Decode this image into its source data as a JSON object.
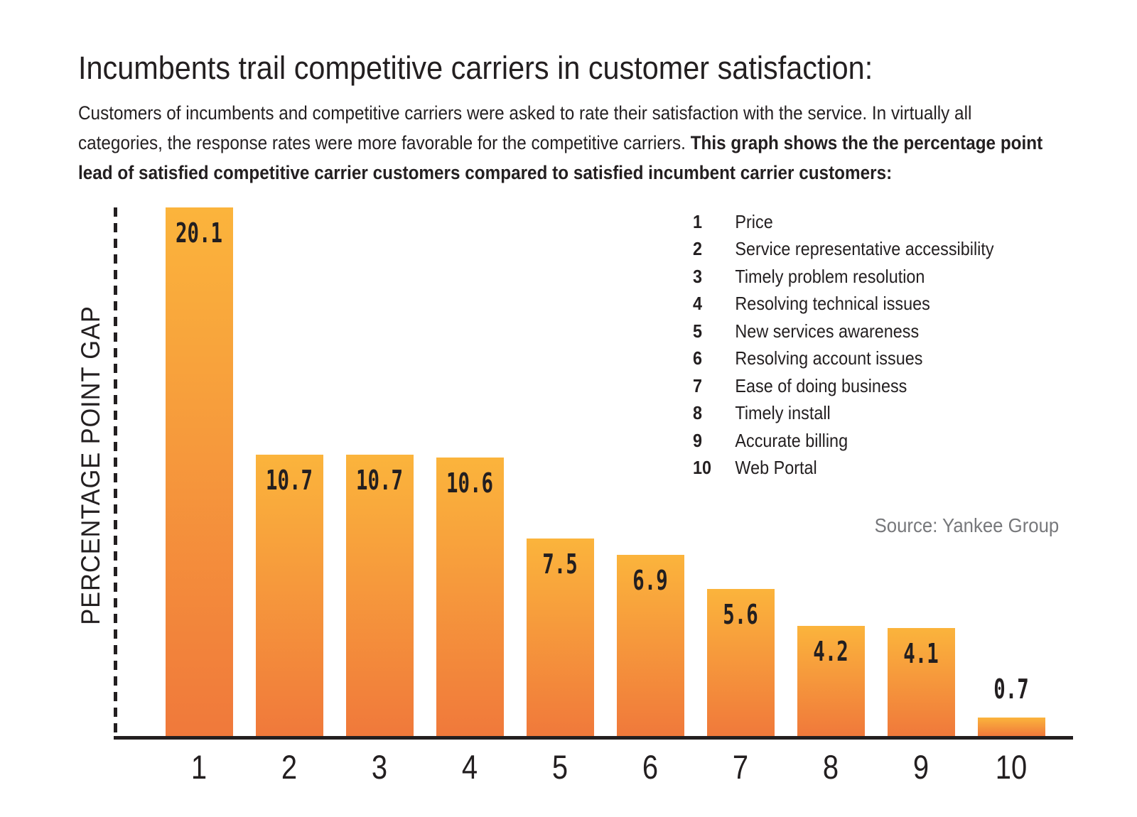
{
  "header": {
    "title": "Incumbents trail competitive carriers in customer satisfaction:",
    "description_regular": "Customers of incumbents and competitive carriers were asked to rate their satisfaction with the service. In virtually all categories, the response rates were more favorable for the competitive carriers. ",
    "description_bold": "This graph shows the the percentage point lead of satisfied competitive carrier customers compared to satisfied incumbent carrier customers:"
  },
  "chart": {
    "y_axis_label": "PERCENTAGE POINT GAP",
    "source": "Source: Yankee Group"
  },
  "legend": {
    "items": [
      {
        "num": "1",
        "label": "Price"
      },
      {
        "num": "2",
        "label": "Service representative accessibility"
      },
      {
        "num": "3",
        "label": "Timely problem resolution"
      },
      {
        "num": "4",
        "label": "Resolving technical issues"
      },
      {
        "num": "5",
        "label": "New services awareness"
      },
      {
        "num": "6",
        "label": "Resolving account issues"
      },
      {
        "num": "7",
        "label": "Ease of doing business"
      },
      {
        "num": "8",
        "label": "Timely install"
      },
      {
        "num": "9",
        "label": "Accurate billing"
      },
      {
        "num": "10",
        "label": "Web Portal"
      }
    ]
  },
  "colors": {
    "text": "#231F20",
    "axis": "#231F20",
    "source_gray": "#77787B",
    "bar_gradient_top": "#FBB43C",
    "bar_gradient_bottom": "#F0793B"
  },
  "chart_data": {
    "type": "bar",
    "categories": [
      "1",
      "2",
      "3",
      "4",
      "5",
      "6",
      "7",
      "8",
      "9",
      "10"
    ],
    "values": [
      20.1,
      10.7,
      10.7,
      10.6,
      7.5,
      6.9,
      5.6,
      4.2,
      4.1,
      0.7
    ],
    "value_labels": [
      "20.1",
      "10.7",
      "10.7",
      "10.6",
      "7.5",
      "6.9",
      "5.6",
      "4.2",
      "4.1",
      "0.7"
    ],
    "title": "Incumbents trail competitive carriers in customer satisfaction:",
    "xlabel": "",
    "ylabel": "PERCENTAGE POINT GAP",
    "ylim": [
      0,
      21
    ],
    "grid": false,
    "legend_position": "upper right",
    "category_meanings": {
      "1": "Price",
      "2": "Service representative accessibility",
      "3": "Timely problem resolution",
      "4": "Resolving technical issues",
      "5": "New services awareness",
      "6": "Resolving account issues",
      "7": "Ease of doing business",
      "8": "Timely install",
      "9": "Accurate billing",
      "10": "Web Portal"
    },
    "source": "Source: Yankee Group"
  }
}
